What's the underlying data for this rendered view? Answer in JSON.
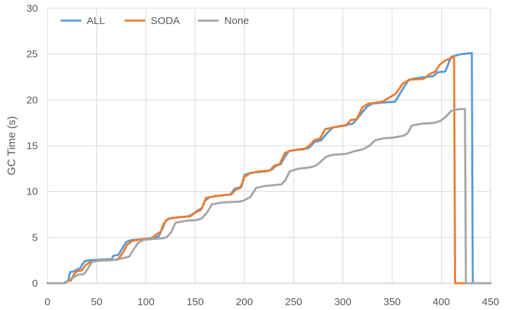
{
  "chart_data": {
    "type": "line",
    "title": "",
    "xlabel": "",
    "ylabel": "GC Time (s)",
    "xlim": [
      0,
      450
    ],
    "ylim": [
      0,
      30
    ],
    "xticks": [
      0,
      50,
      100,
      150,
      200,
      250,
      300,
      350,
      400,
      450
    ],
    "yticks": [
      0,
      5,
      10,
      15,
      20,
      25,
      30
    ],
    "grid": true,
    "legend_position": "top-left",
    "series": [
      {
        "name": "ALL",
        "color": "#5b9bd5",
        "points": [
          [
            0,
            0
          ],
          [
            18,
            0
          ],
          [
            21,
            0.3
          ],
          [
            23,
            1.2
          ],
          [
            27,
            1.3
          ],
          [
            30,
            1.5
          ],
          [
            33,
            1.6
          ],
          [
            35,
            2.0
          ],
          [
            38,
            2.4
          ],
          [
            42,
            2.5
          ],
          [
            50,
            2.55
          ],
          [
            60,
            2.6
          ],
          [
            65,
            2.6
          ],
          [
            67,
            3.0
          ],
          [
            72,
            3.1
          ],
          [
            76,
            3.8
          ],
          [
            80,
            4.5
          ],
          [
            85,
            4.7
          ],
          [
            95,
            4.8
          ],
          [
            104,
            4.9
          ],
          [
            107,
            5.0
          ],
          [
            113,
            5.1
          ],
          [
            117,
            6.0
          ],
          [
            120,
            6.8
          ],
          [
            125,
            7.1
          ],
          [
            135,
            7.2
          ],
          [
            143,
            7.3
          ],
          [
            147,
            7.5
          ],
          [
            152,
            7.9
          ],
          [
            157,
            8.2
          ],
          [
            160,
            9.0
          ],
          [
            165,
            9.4
          ],
          [
            175,
            9.55
          ],
          [
            186,
            9.7
          ],
          [
            190,
            10.3
          ],
          [
            197,
            10.5
          ],
          [
            200,
            11.8
          ],
          [
            205,
            12.0
          ],
          [
            210,
            12.1
          ],
          [
            222,
            12.2
          ],
          [
            228,
            12.4
          ],
          [
            232,
            12.8
          ],
          [
            237,
            13.0
          ],
          [
            240,
            13.6
          ],
          [
            245,
            14.4
          ],
          [
            255,
            14.6
          ],
          [
            264,
            14.7
          ],
          [
            267,
            14.9
          ],
          [
            271,
            15.4
          ],
          [
            278,
            15.6
          ],
          [
            285,
            16.5
          ],
          [
            290,
            17.0
          ],
          [
            295,
            17.1
          ],
          [
            305,
            17.3
          ],
          [
            310,
            17.4
          ],
          [
            315,
            18.0
          ],
          [
            320,
            18.7
          ],
          [
            325,
            19.3
          ],
          [
            330,
            19.6
          ],
          [
            340,
            19.7
          ],
          [
            353,
            19.8
          ],
          [
            357,
            20.5
          ],
          [
            362,
            21.4
          ],
          [
            367,
            22.2
          ],
          [
            376,
            22.4
          ],
          [
            385,
            22.5
          ],
          [
            392,
            22.6
          ],
          [
            396,
            23.0
          ],
          [
            404,
            23.1
          ],
          [
            410,
            24.7
          ],
          [
            420,
            25.0
          ],
          [
            431,
            25.1
          ],
          [
            432,
            0
          ],
          [
            450,
            0
          ]
        ]
      },
      {
        "name": "SODA",
        "color": "#ed7d31",
        "points": [
          [
            0,
            0
          ],
          [
            16,
            0
          ],
          [
            20,
            0.2
          ],
          [
            24,
            0.3
          ],
          [
            27,
            1.0
          ],
          [
            30,
            1.3
          ],
          [
            35,
            1.4
          ],
          [
            38,
            1.9
          ],
          [
            43,
            2.3
          ],
          [
            55,
            2.5
          ],
          [
            70,
            2.55
          ],
          [
            73,
            2.8
          ],
          [
            77,
            3.4
          ],
          [
            81,
            4.2
          ],
          [
            86,
            4.6
          ],
          [
            96,
            4.8
          ],
          [
            106,
            4.85
          ],
          [
            110,
            5.3
          ],
          [
            115,
            5.6
          ],
          [
            118,
            6.5
          ],
          [
            122,
            7.0
          ],
          [
            132,
            7.2
          ],
          [
            145,
            7.3
          ],
          [
            150,
            7.7
          ],
          [
            156,
            8.0
          ],
          [
            161,
            9.3
          ],
          [
            170,
            9.5
          ],
          [
            187,
            9.7
          ],
          [
            191,
            10.2
          ],
          [
            196,
            10.4
          ],
          [
            200,
            11.6
          ],
          [
            206,
            12.0
          ],
          [
            215,
            12.2
          ],
          [
            226,
            12.3
          ],
          [
            230,
            12.8
          ],
          [
            236,
            13.0
          ],
          [
            241,
            14.2
          ],
          [
            248,
            14.5
          ],
          [
            260,
            14.6
          ],
          [
            266,
            15.0
          ],
          [
            271,
            15.6
          ],
          [
            277,
            15.8
          ],
          [
            282,
            16.8
          ],
          [
            290,
            17.0
          ],
          [
            303,
            17.2
          ],
          [
            308,
            17.8
          ],
          [
            314,
            17.9
          ],
          [
            320,
            19.2
          ],
          [
            326,
            19.6
          ],
          [
            340,
            19.8
          ],
          [
            348,
            20.3
          ],
          [
            354,
            20.7
          ],
          [
            361,
            21.8
          ],
          [
            368,
            22.2
          ],
          [
            382,
            22.3
          ],
          [
            388,
            22.8
          ],
          [
            394,
            23.1
          ],
          [
            398,
            23.8
          ],
          [
            404,
            24.3
          ],
          [
            413,
            24.7
          ],
          [
            414,
            0
          ],
          [
            450,
            0
          ]
        ]
      },
      {
        "name": "None",
        "color": "#a5a5a5",
        "points": [
          [
            0,
            0
          ],
          [
            17,
            0
          ],
          [
            22,
            0.4
          ],
          [
            28,
            0.7
          ],
          [
            30,
            0.9
          ],
          [
            37,
            1.0
          ],
          [
            40,
            1.4
          ],
          [
            45,
            2.3
          ],
          [
            50,
            2.45
          ],
          [
            63,
            2.5
          ],
          [
            72,
            2.6
          ],
          [
            75,
            2.7
          ],
          [
            83,
            2.9
          ],
          [
            87,
            3.6
          ],
          [
            92,
            4.4
          ],
          [
            97,
            4.7
          ],
          [
            105,
            4.8
          ],
          [
            117,
            4.9
          ],
          [
            121,
            5.0
          ],
          [
            126,
            5.6
          ],
          [
            130,
            6.6
          ],
          [
            140,
            6.8
          ],
          [
            152,
            6.9
          ],
          [
            157,
            7.1
          ],
          [
            162,
            7.7
          ],
          [
            167,
            8.6
          ],
          [
            177,
            8.8
          ],
          [
            195,
            8.9
          ],
          [
            199,
            9.0
          ],
          [
            206,
            9.4
          ],
          [
            212,
            10.4
          ],
          [
            220,
            10.6
          ],
          [
            231,
            10.7
          ],
          [
            238,
            10.8
          ],
          [
            242,
            11.3
          ],
          [
            246,
            12.2
          ],
          [
            255,
            12.5
          ],
          [
            265,
            12.6
          ],
          [
            272,
            12.8
          ],
          [
            277,
            13.2
          ],
          [
            283,
            13.8
          ],
          [
            290,
            14.0
          ],
          [
            303,
            14.1
          ],
          [
            312,
            14.4
          ],
          [
            320,
            14.6
          ],
          [
            327,
            15.0
          ],
          [
            333,
            15.6
          ],
          [
            341,
            15.8
          ],
          [
            352,
            15.9
          ],
          [
            362,
            16.1
          ],
          [
            366,
            16.4
          ],
          [
            370,
            17.2
          ],
          [
            380,
            17.4
          ],
          [
            393,
            17.5
          ],
          [
            399,
            17.7
          ],
          [
            404,
            18.1
          ],
          [
            410,
            18.8
          ],
          [
            418,
            19.0
          ],
          [
            424,
            19.0
          ],
          [
            425,
            0
          ],
          [
            450,
            0
          ]
        ]
      }
    ]
  }
}
